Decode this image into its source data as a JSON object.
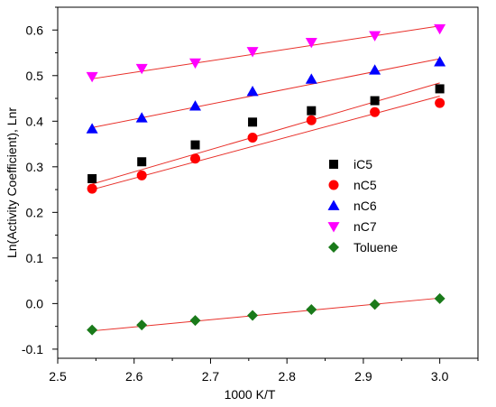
{
  "chart_data": {
    "type": "scatter",
    "xlabel": "1000 K/T",
    "ylabel": "Ln(Activity Coefficient), Lnr",
    "xlim": [
      2.5,
      3.05
    ],
    "ylim": [
      -0.12,
      0.65
    ],
    "x_ticks": [
      2.5,
      2.6,
      2.7,
      2.8,
      2.9,
      3.0
    ],
    "x_tick_labels": [
      "2.5",
      "2.6",
      "2.7",
      "2.8",
      "2.9",
      "3.0"
    ],
    "y_ticks": [
      -0.1,
      0.0,
      0.1,
      0.2,
      0.3,
      0.4,
      0.5,
      0.6
    ],
    "y_tick_labels": [
      "-0.1",
      "0.0",
      "0.1",
      "0.2",
      "0.3",
      "0.4",
      "0.5",
      "0.6"
    ],
    "grid": false,
    "legend_position": "center-right",
    "fit_line_color": "#e8302a",
    "x": [
      2.545,
      2.61,
      2.68,
      2.755,
      2.832,
      2.915,
      3.0
    ],
    "series": [
      {
        "name": "iC5",
        "marker": "square",
        "color": "#000000",
        "values": [
          0.274,
          0.311,
          0.348,
          0.398,
          0.423,
          0.445,
          0.471
        ],
        "fit": [
          0.262,
          0.484
        ]
      },
      {
        "name": "nC5",
        "marker": "circle",
        "color": "#ff0000",
        "values": [
          0.252,
          0.281,
          0.318,
          0.364,
          0.402,
          0.42,
          0.44
        ],
        "fit": [
          0.25,
          0.455
        ]
      },
      {
        "name": "nC6",
        "marker": "triangle-up",
        "color": "#0000ff",
        "values": [
          0.383,
          0.407,
          0.433,
          0.465,
          0.492,
          0.512,
          0.53
        ],
        "fit": [
          0.386,
          0.537
        ]
      },
      {
        "name": "nC7",
        "marker": "triangle-down",
        "color": "#ff00ff",
        "values": [
          0.498,
          0.516,
          0.528,
          0.553,
          0.573,
          0.588,
          0.603
        ],
        "fit": [
          0.493,
          0.609
        ]
      },
      {
        "name": "Toluene",
        "marker": "diamond",
        "color": "#1a7a1a",
        "values": [
          -0.058,
          -0.047,
          -0.037,
          -0.026,
          -0.013,
          -0.002,
          0.011
        ],
        "fit": [
          -0.06,
          0.012
        ]
      }
    ]
  }
}
